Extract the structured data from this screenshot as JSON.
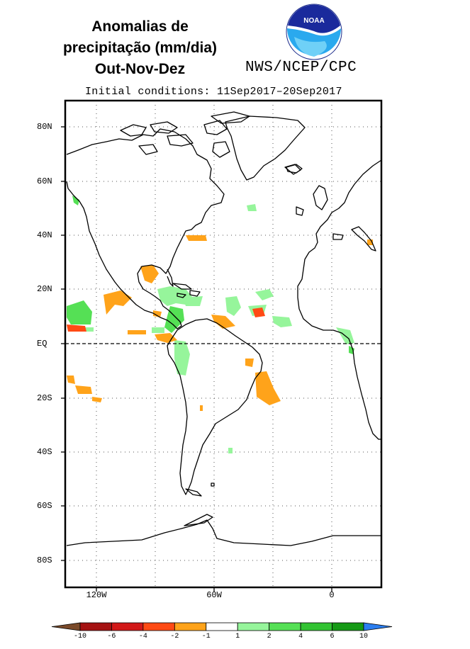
{
  "title": {
    "line1": "Anomalias de",
    "line2": "precipitação (mm/dia)",
    "line3": "Out-Nov-Dez"
  },
  "logo": {
    "text": "NOAA",
    "icon": "noaa-logo-icon"
  },
  "agency": "NWS/NCEP/CPC",
  "initial_conditions": "Initial conditions: 11Sep2017–20Sep2017",
  "map": {
    "lat_labels": [
      "80N",
      "60N",
      "40N",
      "20N",
      "EQ",
      "20S",
      "40S",
      "60S",
      "80S"
    ],
    "lon_labels": [
      "120W",
      "60W",
      "0"
    ],
    "equator_style": "dashed",
    "grid": "dotted"
  },
  "colorbar": {
    "labels": [
      "-10",
      "-6",
      "-4",
      "-2",
      "-1",
      "1",
      "2",
      "4",
      "6",
      "10"
    ],
    "colors": [
      "#7a4a2a",
      "#a51212",
      "#d21818",
      "#ff4a14",
      "#ffa31a",
      "#ffffff",
      "#96f59b",
      "#55e055",
      "#32c332",
      "#159a15",
      "#2b7ef0"
    ]
  }
}
